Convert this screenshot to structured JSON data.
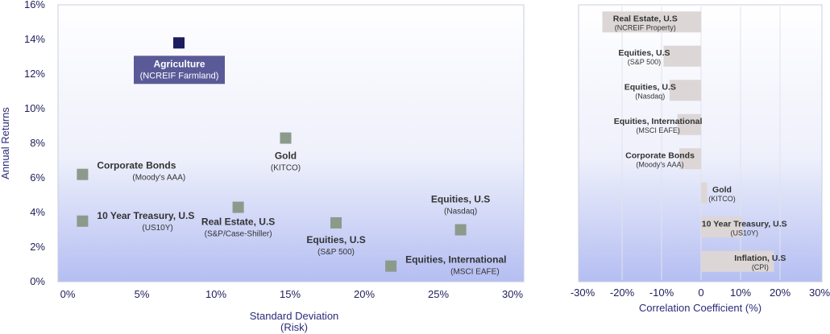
{
  "chart_data": [
    {
      "type": "scatter",
      "xlabel": "Standard Deviation",
      "xlabel_sub": "(Risk)",
      "ylabel": "Annual Returns",
      "xlim": [
        0,
        30
      ],
      "ylim": [
        0,
        16
      ],
      "x_ticks": [
        "0%",
        "5%",
        "10%",
        "15%",
        "20%",
        "25%",
        "30%"
      ],
      "y_ticks": [
        "0%",
        "2%",
        "4%",
        "6%",
        "8%",
        "10%",
        "12%",
        "14%",
        "16%"
      ],
      "grid": false,
      "points": [
        {
          "name": "Agriculture",
          "sub": "(NCREIF Farmland)",
          "x": 7.5,
          "y": 13.8,
          "highlight": true,
          "color": "#1c1c5e"
        },
        {
          "name": "Corporate Bonds",
          "sub": "(Moody's AAA)",
          "x": 1.0,
          "y": 6.2,
          "color": "#8c9a8c"
        },
        {
          "name": "10 Year Treasury, U.S",
          "sub": "(US10Y)",
          "x": 1.0,
          "y": 3.5,
          "color": "#8c9a8c"
        },
        {
          "name": "Real Estate, U.S",
          "sub": "(S&P/Case-Shiller)",
          "x": 11.5,
          "y": 4.3,
          "color": "#8c9a8c"
        },
        {
          "name": "Gold",
          "sub": "(KITCO)",
          "x": 14.7,
          "y": 8.3,
          "color": "#8c9a8c"
        },
        {
          "name": "Equities, U.S",
          "sub": "(S&P 500)",
          "x": 18.1,
          "y": 3.4,
          "color": "#8c9a8c"
        },
        {
          "name": "Equities, International",
          "sub": "(MSCI EAFE)",
          "x": 21.8,
          "y": 0.9,
          "color": "#8c9a8c"
        },
        {
          "name": "Equities, U.S",
          "sub": "(Nasdaq)",
          "x": 26.5,
          "y": 3.0,
          "color": "#8c9a8c"
        }
      ]
    },
    {
      "type": "bar",
      "orientation": "horizontal",
      "xlabel": "Correlation Coefficient (%)",
      "xlim": [
        -30,
        30
      ],
      "x_ticks": [
        "-30%",
        "-20%",
        "-10%",
        "0",
        "10%",
        "20%",
        "30%"
      ],
      "grid": true,
      "categories": [
        {
          "name": "Real Estate, U.S",
          "sub": "(NCREIF Property)"
        },
        {
          "name": "Equities, U.S",
          "sub": "(S&P 500)"
        },
        {
          "name": "Equities, U.S",
          "sub": "(Nasdaq)"
        },
        {
          "name": "Equities, International",
          "sub": "(MSCI EAFE)"
        },
        {
          "name": "Corporate Bonds",
          "sub": "(Moody's AAA)"
        },
        {
          "name": "Gold",
          "sub": "(KITCO)"
        },
        {
          "name": "10 Year Treasury, U.S",
          "sub": "(US10Y)"
        },
        {
          "name": "Inflation, U.S",
          "sub": "(CPI)"
        }
      ],
      "values": [
        -25,
        -9.5,
        -8,
        -6,
        -5.5,
        1.5,
        10.5,
        18.5
      ],
      "bar_color": "#dcd6d6"
    }
  ]
}
